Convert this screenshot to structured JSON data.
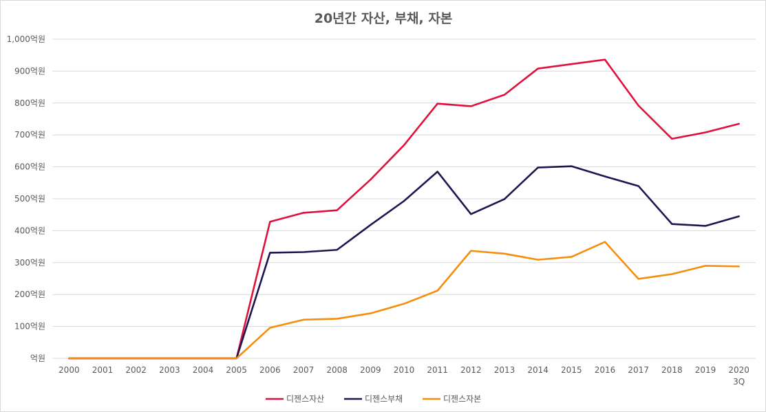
{
  "chart_data": {
    "type": "line",
    "title": "20년간 자산, 부채, 자본",
    "xlabel": "",
    "ylabel": "",
    "categories": [
      "2000",
      "2001",
      "2002",
      "2003",
      "2004",
      "2005",
      "2006",
      "2007",
      "2008",
      "2009",
      "2010",
      "2011",
      "2012",
      "2013",
      "2014",
      "2015",
      "2016",
      "2017",
      "2018",
      "2019",
      "2020\n3Q"
    ],
    "y_ticks": [
      "억원",
      "100억원",
      "200억원",
      "300억원",
      "400억원",
      "500억원",
      "600억원",
      "700억원",
      "800억원",
      "900억원",
      "1,000억원"
    ],
    "ylim": [
      0,
      1000
    ],
    "grid": true,
    "legend_position": "bottom",
    "series": [
      {
        "name": "디젠스자산",
        "color": "#e0103c",
        "values": [
          0,
          0,
          0,
          0,
          0,
          0,
          428,
          456,
          464,
          560,
          668,
          798,
          790,
          826,
          908,
          922,
          936,
          792,
          688,
          708,
          735
        ]
      },
      {
        "name": "디젠스부채",
        "color": "#1d1550",
        "values": [
          0,
          0,
          0,
          0,
          0,
          0,
          331,
          333,
          340,
          418,
          493,
          585,
          452,
          499,
          598,
          602,
          570,
          540,
          421,
          415,
          445
        ]
      },
      {
        "name": "디젠스자본",
        "color": "#f58d0d",
        "values": [
          0,
          0,
          0,
          0,
          0,
          0,
          96,
          121,
          124,
          141,
          171,
          212,
          337,
          328,
          309,
          318,
          365,
          249,
          264,
          290,
          288
        ]
      }
    ]
  }
}
